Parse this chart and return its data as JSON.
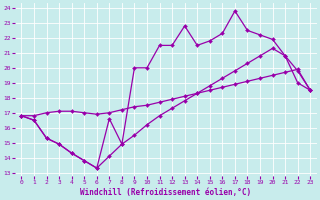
{
  "xlabel": "Windchill (Refroidissement éolien,°C)",
  "bg_color": "#c8ecec",
  "line_color": "#9900aa",
  "grid_color": "#ffffff",
  "xlim": [
    -0.5,
    23.5
  ],
  "ylim": [
    12.8,
    24.3
  ],
  "xticks": [
    0,
    1,
    2,
    3,
    4,
    5,
    6,
    7,
    8,
    9,
    10,
    11,
    12,
    13,
    14,
    15,
    16,
    17,
    18,
    19,
    20,
    21,
    22,
    23
  ],
  "yticks": [
    13,
    14,
    15,
    16,
    17,
    18,
    19,
    20,
    21,
    22,
    23,
    24
  ],
  "line_bottom_x": [
    0,
    1,
    2,
    3,
    4,
    5,
    6,
    7,
    8,
    9,
    10,
    11,
    12,
    13,
    14,
    15,
    16,
    17,
    18,
    19,
    20,
    21,
    22,
    23
  ],
  "line_bottom_y": [
    16.8,
    16.5,
    15.3,
    14.9,
    14.3,
    13.8,
    13.3,
    14.1,
    14.9,
    15.5,
    16.2,
    16.8,
    17.3,
    17.8,
    18.3,
    18.8,
    19.3,
    19.8,
    20.3,
    20.8,
    21.3,
    20.8,
    19.8,
    18.5
  ],
  "line_mid_x": [
    0,
    1,
    2,
    3,
    4,
    5,
    6,
    7,
    8,
    9,
    10,
    11,
    12,
    13,
    14,
    15,
    16,
    17,
    18,
    19,
    20,
    21,
    22,
    23
  ],
  "line_mid_y": [
    16.8,
    16.8,
    17.0,
    17.1,
    17.1,
    17.0,
    16.9,
    17.0,
    17.2,
    17.4,
    17.5,
    17.7,
    17.9,
    18.1,
    18.3,
    18.5,
    18.7,
    18.9,
    19.1,
    19.3,
    19.5,
    19.7,
    19.9,
    18.5
  ],
  "line_top_x": [
    0,
    1,
    2,
    3,
    4,
    5,
    6,
    7,
    8,
    9,
    10,
    11,
    12,
    13,
    14,
    15,
    16,
    17,
    18,
    19,
    20,
    21,
    22,
    23
  ],
  "line_top_y": [
    16.8,
    16.5,
    15.3,
    14.9,
    14.3,
    13.8,
    13.3,
    16.6,
    14.9,
    20.0,
    20.0,
    21.5,
    21.5,
    22.8,
    21.5,
    21.8,
    22.3,
    23.8,
    22.5,
    22.2,
    21.9,
    20.8,
    19.0,
    18.5
  ],
  "marker": "D",
  "markersize": 2.0,
  "linewidth": 0.9,
  "tick_fontsize": 4.5,
  "xlabel_fontsize": 5.5
}
